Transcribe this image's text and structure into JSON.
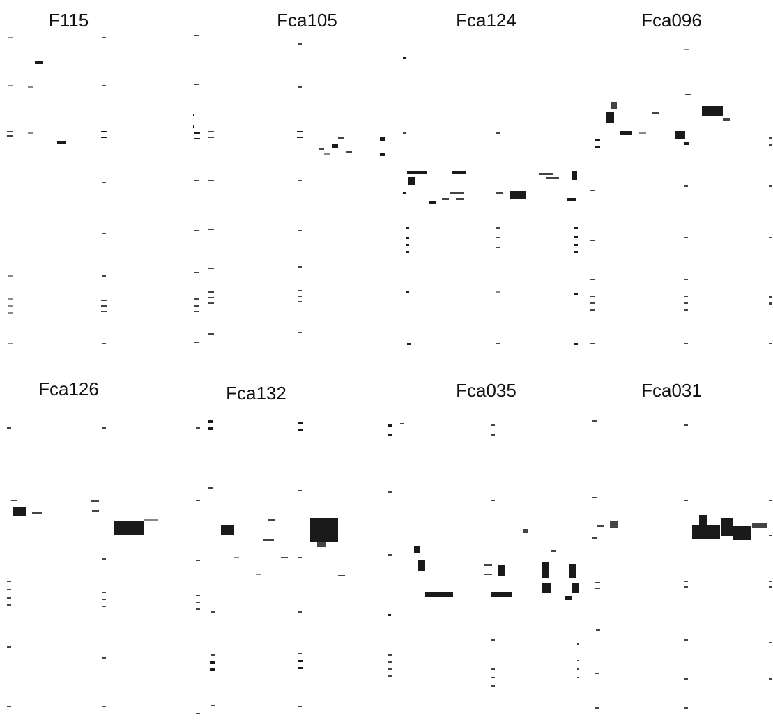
{
  "panels": [
    {
      "label": "F115"
    },
    {
      "label": "Fca105"
    },
    {
      "label": "Fca124"
    },
    {
      "label": "Fca096"
    },
    {
      "label": "Fca126"
    },
    {
      "label": "Fca132"
    },
    {
      "label": "Fca035"
    },
    {
      "label": "Fca031"
    }
  ]
}
